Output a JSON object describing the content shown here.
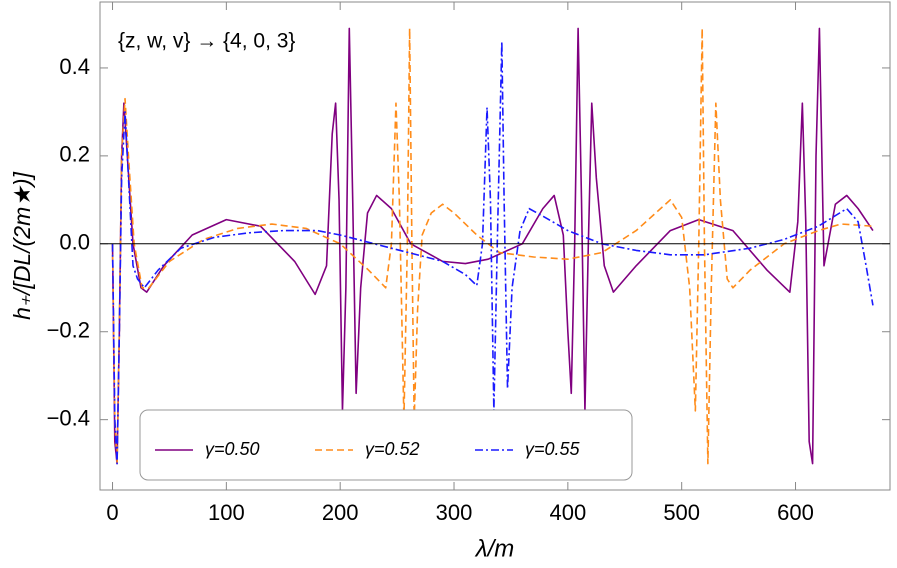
{
  "chart_data": {
    "type": "line",
    "annotation": "{z, w, v} → {4, 0, 3}",
    "xlabel": "λ/m",
    "ylabel": "h₊/[DL/(2m★)]",
    "xlim": [
      -11,
      683
    ],
    "ylim": [
      -0.56,
      0.55
    ],
    "xticks": [
      0,
      100,
      200,
      300,
      400,
      500,
      600
    ],
    "yticks": [
      {
        "value": -0.4,
        "label": "−0.4"
      },
      {
        "value": -0.2,
        "label": "−0.2"
      },
      {
        "value": 0,
        "label": "0.0"
      },
      0.2,
      0.4
    ],
    "legend": "lower left",
    "series": [
      {
        "name": "γ=0.50",
        "color": "#800080",
        "linestyle": "solid",
        "x": [
          0,
          2,
          4,
          6,
          8,
          10,
          13,
          18,
          25,
          30,
          45,
          70,
          100,
          130,
          160,
          178,
          188,
          193,
          196,
          199,
          202,
          205,
          208,
          211,
          214,
          218,
          224,
          232,
          245,
          262,
          290,
          310,
          330,
          360,
          378,
          388,
          396,
          400,
          403,
          406,
          409,
          412,
          415,
          418,
          421,
          425,
          432,
          440,
          460,
          490,
          515,
          545,
          575,
          595,
          602,
          606,
          609,
          612,
          615,
          618,
          621,
          625,
          635,
          645,
          655,
          668
        ],
        "values": [
          0,
          -0.45,
          -0.5,
          -0.2,
          0.2,
          0.32,
          0.2,
          0.0,
          -0.1,
          -0.11,
          -0.05,
          0.02,
          0.055,
          0.04,
          -0.04,
          -0.115,
          -0.05,
          0.25,
          0.32,
          0.1,
          -0.38,
          -0.1,
          0.49,
          0.1,
          -0.34,
          -0.1,
          0.07,
          0.11,
          0.08,
          0.0,
          -0.04,
          -0.045,
          -0.035,
          0.0,
          0.08,
          0.11,
          0.02,
          -0.2,
          -0.34,
          0,
          0.49,
          0.1,
          -0.38,
          0,
          0.32,
          0.15,
          -0.05,
          -0.11,
          -0.05,
          0.03,
          0.055,
          0.03,
          -0.06,
          -0.11,
          0.05,
          0.32,
          0.05,
          -0.45,
          -0.5,
          0.2,
          0.49,
          -0.05,
          0.09,
          0.11,
          0.08,
          0.03
        ]
      },
      {
        "name": "γ=0.52",
        "color": "#ff8c1a",
        "linestyle": "dashed",
        "x": [
          0,
          2,
          4,
          6,
          8,
          11,
          14,
          19,
          26,
          32,
          50,
          80,
          110,
          140,
          170,
          200,
          225,
          240,
          245,
          249,
          252,
          256,
          259,
          261,
          263,
          265,
          268,
          272,
          280,
          290,
          300,
          320,
          340,
          370,
          400,
          430,
          460,
          490,
          500,
          507,
          512,
          515,
          518,
          520,
          523,
          526,
          530,
          534,
          540,
          545,
          560,
          590,
          620,
          640,
          668
        ],
        "values": [
          0,
          -0.4,
          -0.5,
          -0.2,
          0.2,
          0.33,
          0.2,
          0,
          -0.1,
          -0.1,
          -0.04,
          0.01,
          0.035,
          0.045,
          0.035,
          0,
          -0.06,
          -0.1,
          0,
          0.32,
          0.1,
          -0.4,
          0,
          0.49,
          0,
          -0.4,
          -0.15,
          0.02,
          0.07,
          0.09,
          0.07,
          0.02,
          -0.02,
          -0.03,
          -0.035,
          -0.02,
          0.03,
          0.1,
          0.06,
          -0.1,
          -0.38,
          0,
          0.49,
          0,
          -0.5,
          -0.1,
          0.32,
          0.1,
          -0.08,
          -0.1,
          -0.06,
          0.0,
          0.03,
          0.045,
          0.04
        ]
      },
      {
        "name": "γ=0.55",
        "color": "#1a1aff",
        "linestyle": "dashdot",
        "x": [
          0,
          2,
          4,
          6,
          8,
          11,
          14,
          18,
          22,
          28,
          40,
          60,
          90,
          120,
          150,
          180,
          200,
          230,
          260,
          290,
          310,
          320,
          325,
          329,
          332,
          335,
          338,
          342,
          344,
          347,
          351,
          358,
          366,
          380,
          400,
          430,
          460,
          490,
          520,
          560,
          590,
          620,
          645,
          655,
          662,
          668
        ],
        "values": [
          0,
          -0.4,
          -0.5,
          -0.2,
          0.15,
          0.3,
          0.15,
          -0.05,
          -0.08,
          -0.1,
          -0.06,
          -0.01,
          0.015,
          0.025,
          0.03,
          0.03,
          0.02,
          0,
          -0.02,
          -0.04,
          -0.07,
          -0.095,
          0,
          0.31,
          0.1,
          -0.38,
          0,
          0.46,
          0.1,
          -0.33,
          -0.1,
          0.03,
          0.08,
          0.06,
          0.03,
          0,
          -0.015,
          -0.025,
          -0.025,
          -0.01,
          0.01,
          0.04,
          0.08,
          0.05,
          -0.05,
          -0.14
        ]
      }
    ]
  }
}
